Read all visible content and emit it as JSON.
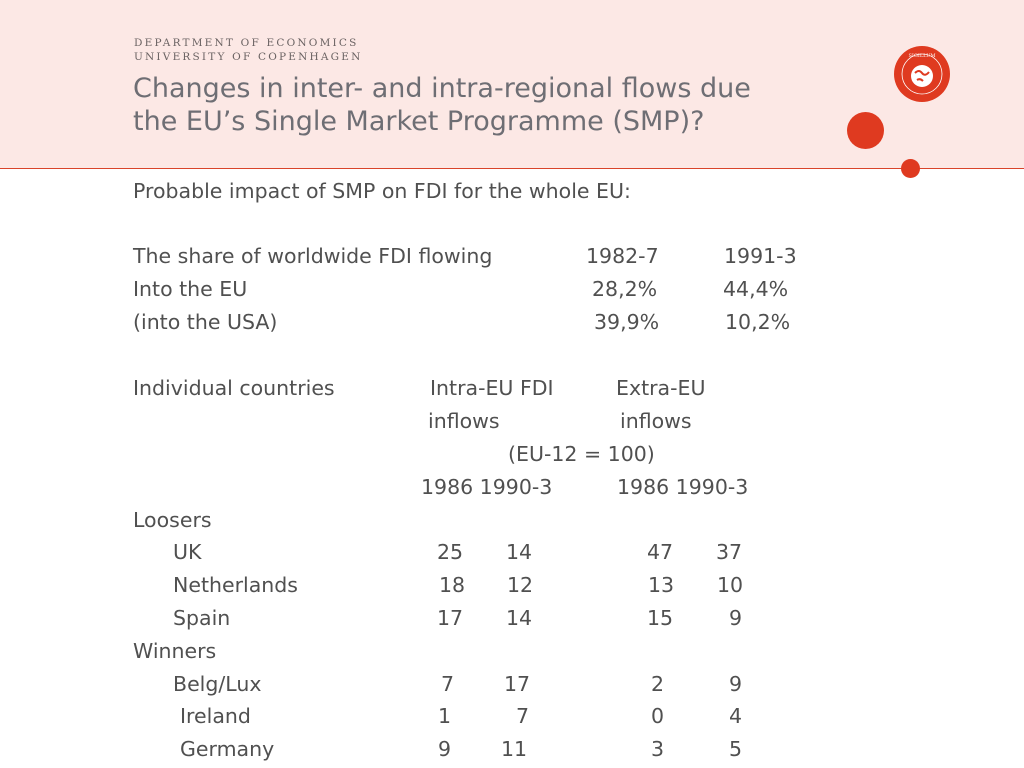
{
  "header": {
    "dept_line1": "DEPARTMENT OF ECONOMICS",
    "dept_line2": "UNIVERSITY OF COPENHAGEN",
    "title_line1": "Changes in inter- and intra-regional flows due",
    "title_line2": "the EU’s Single Market Programme (SMP)?",
    "seal_text": "SIGILLUM FACULTATIS SOCIALIS · UNIVERSITATIS HAUNIENSIS",
    "accent_color": "#df3a20"
  },
  "body": {
    "intro": "Probable impact of SMP on FDI for the whole EU:",
    "share": {
      "label": "The share of worldwide FDI flowing",
      "col1": "1982-7",
      "col2": "1991-3",
      "rows": [
        {
          "label": "Into the EU",
          "v1": "28,2%",
          "v2": "44,4%"
        },
        {
          "label": "(into the USA)",
          "v1": "39,9%",
          "v2": "10,2%"
        }
      ]
    },
    "countries": {
      "label": "Individual countries",
      "intra_h1": "Intra-EU FDI",
      "intra_h2": "inflows",
      "extra_h1": "Extra-EU",
      "extra_h2": "inflows",
      "index_note": "(EU-12 = 100)",
      "years_intra": "1986 1990-3",
      "years_extra": "1986 1990-3",
      "loosers_label": "Loosers",
      "winners_label": "Winners",
      "loosers": [
        {
          "name": "UK",
          "a": "25",
          "b": "14",
          "c": "47",
          "d": "37"
        },
        {
          "name": "Netherlands",
          "a": "18",
          "b": "12",
          "c": "13",
          "d": "10"
        },
        {
          "name": "Spain",
          "a": "17",
          "b": "14",
          "c": "15",
          "d": "9"
        }
      ],
      "winners": [
        {
          "name": "Belg/Lux",
          "a": "7",
          "b": "17",
          "c": "2",
          "d": "9"
        },
        {
          "name": "Ireland",
          "a": "1",
          "b": "7",
          "c": "0",
          "d": "4"
        },
        {
          "name": "Germany",
          "a": "9",
          "b": "11",
          "c": "3",
          "d": "5"
        }
      ]
    }
  }
}
